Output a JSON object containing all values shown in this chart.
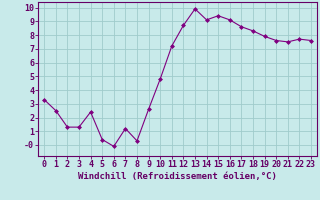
{
  "x": [
    0,
    1,
    2,
    3,
    4,
    5,
    6,
    7,
    8,
    9,
    10,
    11,
    12,
    13,
    14,
    15,
    16,
    17,
    18,
    19,
    20,
    21,
    22,
    23
  ],
  "y": [
    3.3,
    2.5,
    1.3,
    1.3,
    2.4,
    0.4,
    -0.1,
    1.2,
    0.3,
    2.6,
    4.8,
    7.2,
    8.7,
    9.9,
    9.1,
    9.4,
    9.1,
    8.6,
    8.3,
    7.9,
    7.6,
    7.5,
    7.7,
    7.6
  ],
  "line_color": "#800080",
  "marker_color": "#800080",
  "bg_color": "#c8eaea",
  "grid_color": "#a0cccc",
  "xlabel": "Windchill (Refroidissement éolien,°C)",
  "xlim": [
    -0.5,
    23.5
  ],
  "ylim": [
    -0.8,
    10.4
  ],
  "xticks": [
    0,
    1,
    2,
    3,
    4,
    5,
    6,
    7,
    8,
    9,
    10,
    11,
    12,
    13,
    14,
    15,
    16,
    17,
    18,
    19,
    20,
    21,
    22,
    23
  ],
  "yticks": [
    0,
    1,
    2,
    3,
    4,
    5,
    6,
    7,
    8,
    9,
    10
  ],
  "ytick_labels": [
    "-0",
    "1",
    "2",
    "3",
    "4",
    "5",
    "6",
    "7",
    "8",
    "9",
    "10"
  ],
  "xlabel_fontsize": 6.5,
  "tick_fontsize": 6.0,
  "axis_label_color": "#660066",
  "spine_color": "#660066"
}
